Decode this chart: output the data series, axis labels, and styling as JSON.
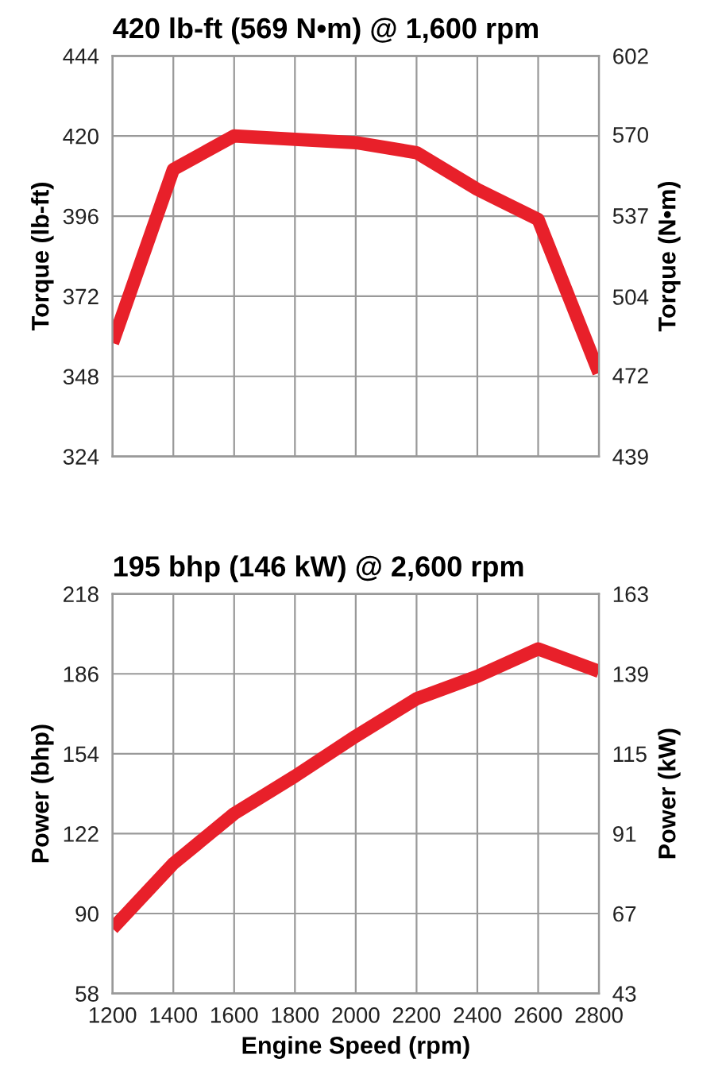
{
  "chart_data": [
    {
      "type": "line",
      "title": "420 lb-ft (569 N•m) @ 1,600 rpm",
      "ylabel": "Torque (lb-ft)",
      "y2label": "Torque (N•m)",
      "x": [
        1200,
        1400,
        1600,
        1800,
        2000,
        2200,
        2400,
        2600,
        2800
      ],
      "series": [
        {
          "color": "#e8202a",
          "values": [
            358,
            410,
            420,
            419,
            418,
            415,
            404,
            395,
            349
          ]
        }
      ],
      "xlim": [
        1200,
        2800
      ],
      "xticks": [
        1200,
        1400,
        1600,
        1800,
        2000,
        2200,
        2400,
        2600,
        2800
      ],
      "ylim": [
        324,
        444
      ],
      "yticks": [
        324,
        348,
        372,
        396,
        420,
        444
      ],
      "y2lim": [
        439,
        602
      ],
      "y2ticks": [
        439,
        472,
        504,
        537,
        570,
        602
      ],
      "grid": true,
      "tick_labels": "y",
      "marker": "none",
      "line_style": "solid"
    },
    {
      "type": "line",
      "title": "195 bhp (146 kW) @ 2,600 rpm",
      "xlabel": "Engine Speed (rpm)",
      "ylabel": "Power (bhp)",
      "y2label": "Power (kW)",
      "x": [
        1200,
        1400,
        1600,
        1800,
        2000,
        2200,
        2400,
        2600,
        2800
      ],
      "series": [
        {
          "color": "#e8202a",
          "values": [
            84,
            110,
            130,
            145,
            161,
            176,
            185,
            196,
            187
          ]
        }
      ],
      "xlim": [
        1200,
        2800
      ],
      "xticks": [
        1200,
        1400,
        1600,
        1800,
        2000,
        2200,
        2400,
        2600,
        2800
      ],
      "ylim": [
        58,
        218
      ],
      "yticks": [
        58,
        90,
        122,
        154,
        186,
        218
      ],
      "y2lim": [
        43,
        163
      ],
      "y2ticks": [
        43,
        67,
        91,
        115,
        139,
        163
      ],
      "grid": true,
      "marker": "none",
      "line_style": "solid"
    }
  ]
}
